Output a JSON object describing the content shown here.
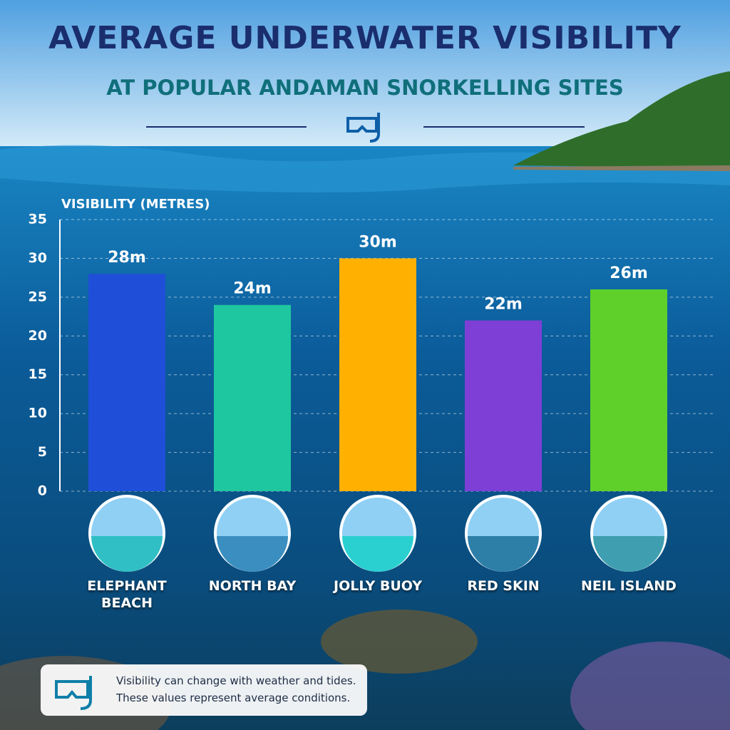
{
  "chart_data": {
    "type": "bar",
    "title": "AVERAGE UNDERWATER VISIBILITY",
    "subtitle": "AT POPULAR ANDAMAN SNORKELLING SITES",
    "y_label": "VISIBILITY (METRES)",
    "categories": [
      "ELEPHANT BEACH",
      "NORTH BAY",
      "JOLLY BUOY",
      "RED SKIN",
      "NEIL ISLAND"
    ],
    "values": [
      28,
      24,
      30,
      22,
      26
    ],
    "value_labels": [
      "28m",
      "24m",
      "30m",
      "22m",
      "26m"
    ],
    "colors": [
      "#1f4fd8",
      "#1fc7a0",
      "#ffb000",
      "#7d3fd6",
      "#5fd02a"
    ],
    "ylim": [
      0,
      35
    ],
    "yticks": [
      0,
      5,
      10,
      15,
      20,
      25,
      30,
      35
    ],
    "grid": true,
    "note": [
      "Visibility can change with weather and tides.",
      "These values represent average conditions."
    ]
  }
}
